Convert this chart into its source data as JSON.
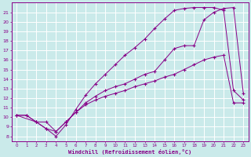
{
  "xlabel": "Windchill (Refroidissement éolien,°C)",
  "bg_color": "#caeaea",
  "grid_color": "#ffffff",
  "line_color": "#880088",
  "xlim": [
    -0.5,
    23.5
  ],
  "ylim": [
    7.5,
    22.0
  ],
  "xticks": [
    0,
    1,
    2,
    3,
    4,
    5,
    6,
    7,
    8,
    9,
    10,
    11,
    12,
    13,
    14,
    15,
    16,
    17,
    18,
    19,
    20,
    21,
    22,
    23
  ],
  "yticks": [
    8,
    9,
    10,
    11,
    12,
    13,
    14,
    15,
    16,
    17,
    18,
    19,
    20,
    21
  ],
  "line1_x": [
    0,
    1,
    2,
    3,
    4,
    5,
    6,
    7,
    8,
    9,
    10,
    11,
    12,
    13,
    14,
    15,
    16,
    17,
    18,
    19,
    20,
    21,
    22,
    23
  ],
  "line1_y": [
    10.2,
    10.2,
    9.5,
    9.5,
    8.5,
    9.5,
    10.5,
    11.3,
    11.8,
    12.2,
    12.5,
    12.8,
    13.2,
    13.5,
    13.8,
    14.2,
    14.5,
    15.0,
    15.5,
    16.0,
    16.3,
    16.5,
    11.5,
    11.5
  ],
  "line2_x": [
    0,
    1,
    2,
    3,
    4,
    5,
    6,
    7,
    8,
    9,
    10,
    11,
    12,
    13,
    14,
    15,
    16,
    17,
    18,
    19,
    20,
    21,
    22,
    23
  ],
  "line2_y": [
    10.2,
    10.2,
    9.5,
    8.8,
    8.0,
    9.2,
    10.8,
    12.3,
    13.5,
    14.5,
    15.5,
    16.5,
    17.3,
    18.2,
    19.3,
    20.3,
    21.2,
    21.4,
    21.5,
    21.5,
    21.5,
    21.2,
    12.8,
    11.8
  ],
  "line3_x": [
    0,
    2,
    3,
    4,
    5,
    6,
    7,
    8,
    9,
    10,
    11,
    12,
    13,
    14,
    15,
    16,
    17,
    18,
    19,
    20,
    21,
    22,
    23
  ],
  "line3_y": [
    10.2,
    9.5,
    8.8,
    8.5,
    9.5,
    10.5,
    11.5,
    12.2,
    12.8,
    13.2,
    13.5,
    14.0,
    14.5,
    14.8,
    16.0,
    17.2,
    17.5,
    17.5,
    20.2,
    21.0,
    21.4,
    21.5,
    12.5
  ]
}
